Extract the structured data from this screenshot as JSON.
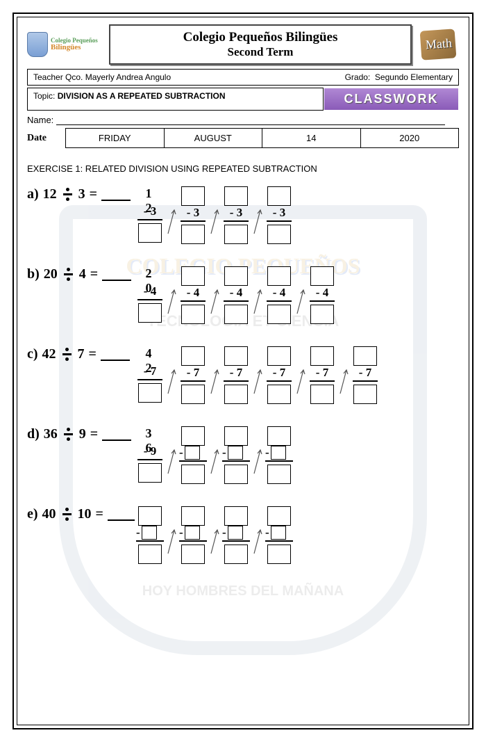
{
  "header": {
    "school": "Colegio Pequeños Bilingües",
    "term": "Second Term",
    "logo_line1": "Colegio Pequeños",
    "logo_line2": "Bilingües",
    "math_label": "Math"
  },
  "info": {
    "teacher_label": "Teacher Qco.",
    "teacher_name": "Mayerly Andrea Angulo",
    "grade_label": "Grado:",
    "grade_value": "Segundo Elementary",
    "topic_label": "Topic:",
    "topic_value": "DIVISION AS A REPEATED SUBTRACTION",
    "classwork": "CLASSWORK",
    "name_label": "Name:",
    "date_label": "Date",
    "date_day": "FRIDAY",
    "date_month": "AUGUST",
    "date_num": "14",
    "date_year": "2020"
  },
  "exercise_title": "EXERCISE 1: RELATED DIVISION USING REPEATED SUBTRACTION",
  "watermark": {
    "line1": "COLEGIO PEQUEÑOS",
    "line2": "TECNOLOGÍA ET CIENCIA",
    "line3": "HOY HOMBRES DEL MAÑANA"
  },
  "problems": [
    {
      "letter": "a)",
      "dividend": "12",
      "divisor": "3",
      "first": "1 2",
      "sub": "- 3",
      "steps": 4,
      "mode": "filled"
    },
    {
      "letter": "b)",
      "dividend": "20",
      "divisor": "4",
      "first": "2 0",
      "sub": "- 4",
      "steps": 5,
      "mode": "filled"
    },
    {
      "letter": "c)",
      "dividend": "42",
      "divisor": "7",
      "first": "4 2",
      "sub": "- 7",
      "steps": 6,
      "mode": "filled"
    },
    {
      "letter": "d)",
      "dividend": "36",
      "divisor": "9",
      "first": "3 6",
      "sub": "- 9",
      "steps": 4,
      "mode": "partial"
    },
    {
      "letter": "e)",
      "dividend": "40",
      "divisor": "10",
      "first": "",
      "sub": "-",
      "steps": 4,
      "mode": "empty"
    }
  ],
  "colors": {
    "classwork_bg": "#9a6fc4",
    "border": "#000000"
  }
}
